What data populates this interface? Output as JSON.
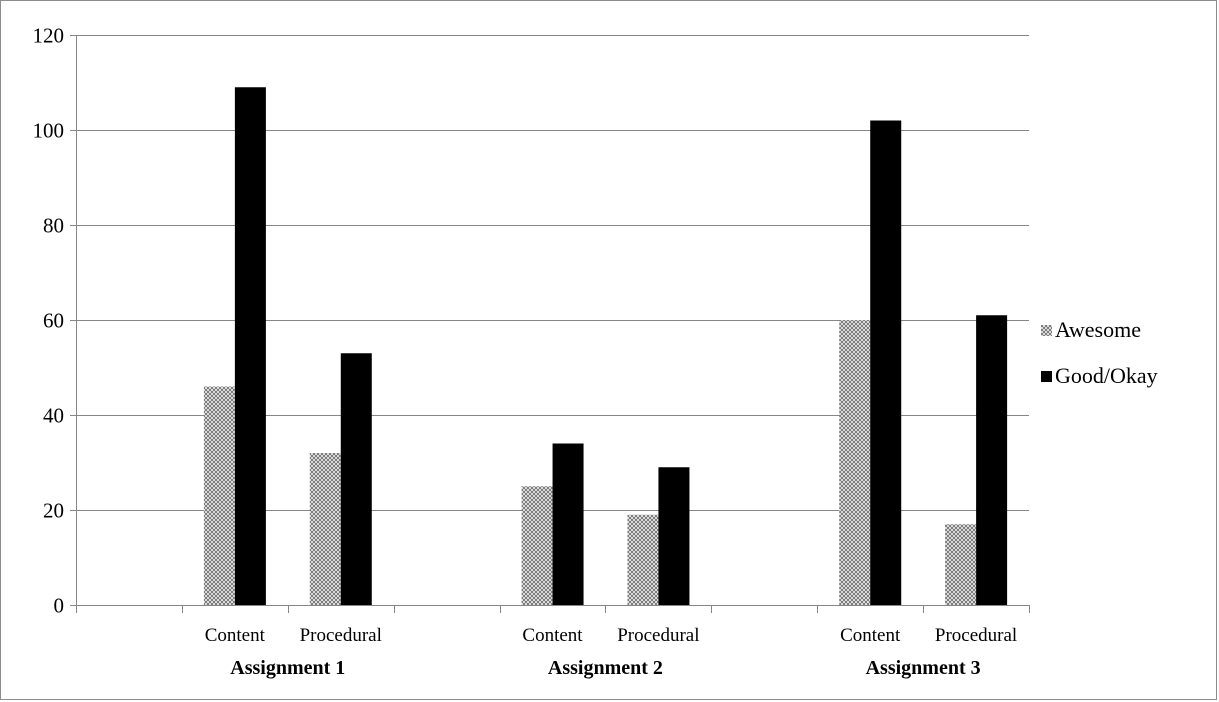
{
  "chart_data": {
    "type": "bar",
    "groups": [
      "Assignment 1",
      "Assignment 2",
      "Assignment 3"
    ],
    "categories": [
      "Content",
      "Procedural",
      "Content",
      "Procedural",
      "Content",
      "Procedural"
    ],
    "series": [
      {
        "name": "Awesome",
        "values": [
          46,
          32,
          25,
          19,
          60,
          17
        ],
        "color": "#a6a6a6",
        "pattern": "crosshatch"
      },
      {
        "name": "Good/Okay",
        "values": [
          109,
          53,
          34,
          29,
          102,
          61
        ],
        "color": "#000000"
      }
    ],
    "yticks": [
      "0",
      "20",
      "40",
      "60",
      "80",
      "100",
      "120"
    ],
    "ylim": [
      0,
      120
    ],
    "grid": true,
    "legend": "right",
    "title": "",
    "xlabel": "",
    "ylabel": ""
  }
}
